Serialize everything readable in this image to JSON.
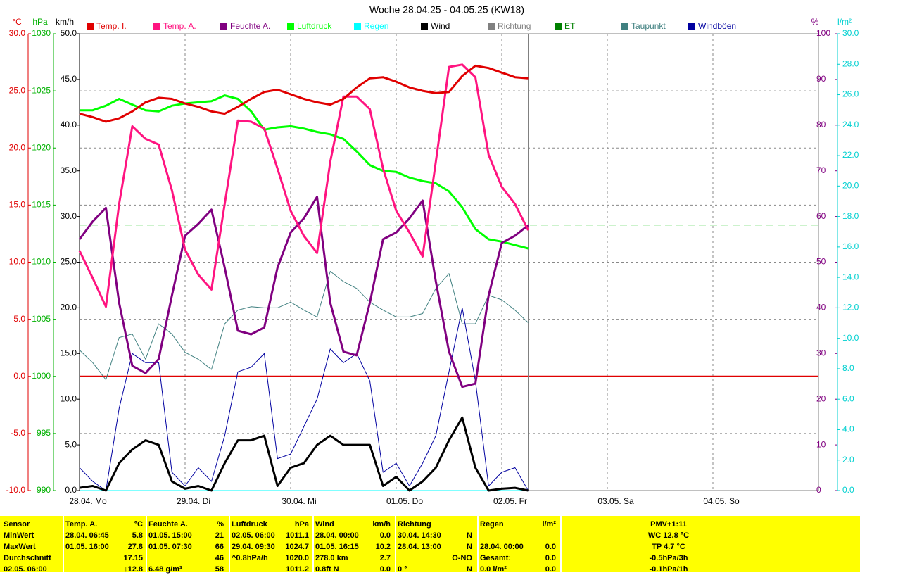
{
  "chart_data": {
    "type": "line",
    "title": "Woche 28.04.25 - 04.05.25 (KW18)",
    "xlim": [
      0,
      7
    ],
    "xticks": [
      {
        "value": 0,
        "label": "28.04. Mo"
      },
      {
        "value": 1,
        "label": "29.04. Di"
      },
      {
        "value": 2,
        "label": "30.04. Mi"
      },
      {
        "value": 3,
        "label": "01.05. Do"
      },
      {
        "value": 4,
        "label": "02.05. Fr"
      },
      {
        "value": 5,
        "label": "03.05. Sa"
      },
      {
        "value": 6,
        "label": "04.05. So"
      }
    ],
    "grid": true,
    "axes": {
      "temp": {
        "unit": "°C",
        "color": "#e00000",
        "lim": [
          -10,
          30
        ],
        "ticks": [
          {
            "value": 30,
            "label": "30.0"
          },
          {
            "value": 25,
            "label": "25.0"
          },
          {
            "value": 20,
            "label": "20.0"
          },
          {
            "value": 15,
            "label": "15.0"
          },
          {
            "value": 10,
            "label": "10.0"
          },
          {
            "value": 5,
            "label": "5.0"
          },
          {
            "value": 0,
            "label": "0.0"
          },
          {
            "value": -5,
            "label": "-5.0"
          },
          {
            "value": -10,
            "label": "-10.0"
          }
        ]
      },
      "hpa": {
        "unit": "hPa",
        "color": "#00b000",
        "lim": [
          990,
          1030
        ],
        "ticks": [
          1030,
          1025,
          1020,
          1015,
          1010,
          1005,
          1000,
          995,
          990
        ]
      },
      "kmh": {
        "unit": "km/h",
        "color": "#000000",
        "lim": [
          0,
          50
        ],
        "ticks": [
          {
            "value": 50,
            "label": "50.0"
          },
          {
            "value": 45,
            "label": "45.0"
          },
          {
            "value": 40,
            "label": "40.0"
          },
          {
            "value": 35,
            "label": "35.0"
          },
          {
            "value": 30,
            "label": "30.0"
          },
          {
            "value": 25,
            "label": "25.0"
          },
          {
            "value": 20,
            "label": "20.0"
          },
          {
            "value": 15,
            "label": "15.0"
          },
          {
            "value": 10,
            "label": "10.0"
          },
          {
            "value": 5,
            "label": "5.0"
          },
          {
            "value": 0,
            "label": "0.0"
          }
        ]
      },
      "pct": {
        "unit": "%",
        "color": "#800080",
        "lim": [
          0,
          100
        ],
        "ticks": [
          100,
          90,
          80,
          70,
          60,
          50,
          40,
          30,
          20,
          10,
          0
        ]
      },
      "rain": {
        "unit": "l/m²",
        "color": "#00d0d0",
        "lim": [
          0,
          30
        ],
        "ticks": [
          {
            "value": 30,
            "label": "30.0"
          },
          {
            "value": 28,
            "label": "28.0"
          },
          {
            "value": 26,
            "label": "26.0"
          },
          {
            "value": 24,
            "label": "24.0"
          },
          {
            "value": 22,
            "label": "22.0"
          },
          {
            "value": 20,
            "label": "20.0"
          },
          {
            "value": 18,
            "label": "18.0"
          },
          {
            "value": 16,
            "label": "16.0"
          },
          {
            "value": 14,
            "label": "14.0"
          },
          {
            "value": 12,
            "label": "12.0"
          },
          {
            "value": 10,
            "label": "10.0"
          },
          {
            "value": 8,
            "label": "8.0"
          },
          {
            "value": 6,
            "label": "6.0"
          },
          {
            "value": 4,
            "label": "4.0"
          },
          {
            "value": 2,
            "label": "2.0"
          },
          {
            "value": 0,
            "label": "0.0"
          }
        ]
      }
    },
    "reference_lines": [
      {
        "axis": "temp",
        "value": 0,
        "color": "#e00000"
      },
      {
        "axis": "hpa",
        "value": 1013.25,
        "color": "#33cc33",
        "dash": true
      }
    ],
    "x": [
      0,
      0.125,
      0.25,
      0.375,
      0.5,
      0.625,
      0.75,
      0.875,
      1,
      1.125,
      1.25,
      1.375,
      1.5,
      1.625,
      1.75,
      1.875,
      2,
      2.125,
      2.25,
      2.375,
      2.5,
      2.625,
      2.75,
      2.875,
      3,
      3.125,
      3.25,
      3.375,
      3.5,
      3.625,
      3.75,
      3.875,
      4,
      4.125,
      4.25
    ],
    "series": [
      {
        "name": "Temp. I.",
        "color": "#e00000",
        "axis": "temp",
        "width": 3,
        "values": [
          23.0,
          22.7,
          22.3,
          22.6,
          23.2,
          24.0,
          24.4,
          24.3,
          23.9,
          23.6,
          23.2,
          23.0,
          23.6,
          24.3,
          24.9,
          25.1,
          24.7,
          24.3,
          24.0,
          23.8,
          24.3,
          25.3,
          26.1,
          26.2,
          25.8,
          25.3,
          25.0,
          24.8,
          24.9,
          26.3,
          27.2,
          27.0,
          26.6,
          26.2,
          26.1
        ]
      },
      {
        "name": "Temp. A.",
        "color": "#ff1480",
        "axis": "temp",
        "width": 3,
        "values": [
          11.0,
          8.6,
          6.1,
          15.1,
          21.9,
          20.8,
          20.3,
          16.3,
          11.1,
          8.9,
          7.6,
          15.1,
          22.4,
          22.3,
          21.7,
          18.2,
          14.5,
          12.3,
          10.8,
          18.8,
          24.5,
          24.5,
          23.4,
          18.2,
          14.5,
          12.6,
          10.5,
          18.8,
          27.1,
          27.3,
          26.2,
          19.4,
          16.6,
          15.1,
          12.8
        ]
      },
      {
        "name": "Feuchte A.",
        "color": "#800080",
        "axis": "pct",
        "width": 3,
        "values": [
          55.0,
          58.9,
          61.9,
          41.1,
          27.3,
          25.7,
          28.8,
          42.7,
          55.8,
          58.4,
          61.5,
          48.8,
          35.0,
          34.2,
          35.7,
          48.8,
          56.5,
          59.6,
          64.3,
          41.1,
          30.4,
          29.6,
          41.1,
          55.0,
          56.5,
          59.6,
          63.5,
          45.8,
          30.4,
          22.7,
          23.4,
          42.7,
          54.2,
          55.8,
          58.1
        ]
      },
      {
        "name": "Luftdruck",
        "color": "#00ff00",
        "axis": "hpa",
        "width": 3,
        "values": [
          1023.3,
          1023.3,
          1023.7,
          1024.3,
          1023.8,
          1023.3,
          1023.2,
          1023.7,
          1023.9,
          1024.0,
          1024.1,
          1024.6,
          1024.3,
          1023.2,
          1021.6,
          1021.8,
          1021.9,
          1021.7,
          1021.4,
          1021.2,
          1020.8,
          1019.7,
          1018.5,
          1018.0,
          1017.9,
          1017.4,
          1017.1,
          1016.9,
          1016.2,
          1014.8,
          1012.9,
          1012.0,
          1011.8,
          1011.5,
          1011.2
        ]
      },
      {
        "name": "Regen",
        "color": "#00ffff",
        "axis": "rain",
        "width": 1,
        "values": [
          0,
          0,
          0,
          0,
          0,
          0,
          0,
          0,
          0,
          0,
          0,
          0,
          0,
          0,
          0,
          0,
          0,
          0,
          0,
          0,
          0,
          0,
          0,
          0,
          0,
          0,
          0,
          0,
          0,
          0,
          0,
          0,
          0,
          0,
          0
        ]
      },
      {
        "name": "Wind",
        "color": "#000000",
        "axis": "kmh",
        "width": 3,
        "values": [
          0.3,
          0.5,
          0.0,
          3.0,
          4.5,
          5.5,
          5.0,
          1.0,
          0.2,
          0.5,
          0.0,
          3.0,
          5.5,
          5.5,
          6.0,
          0.5,
          2.5,
          3.0,
          5.0,
          6.0,
          5.0,
          5.0,
          5.0,
          0.5,
          1.5,
          0.0,
          1.0,
          2.5,
          5.5,
          8.0,
          2.5,
          0.0,
          0.2,
          0.3,
          0.0
        ]
      },
      {
        "name": "Richtung",
        "color": "#808080"
      },
      {
        "name": "ET",
        "color": "#008000"
      },
      {
        "name": "Taupunkt",
        "color": "#408080",
        "axis": "temp",
        "width": 1,
        "values": [
          2.3,
          1.2,
          -0.3,
          3.4,
          3.7,
          1.5,
          4.6,
          3.7,
          2.1,
          1.5,
          0.6,
          4.6,
          5.8,
          6.1,
          6.0,
          6.0,
          6.5,
          5.8,
          5.2,
          9.2,
          8.3,
          7.7,
          6.5,
          5.8,
          5.2,
          5.2,
          5.5,
          7.7,
          9.0,
          4.6,
          4.6,
          7.1,
          6.7,
          5.8,
          4.7
        ]
      },
      {
        "name": "Windböen",
        "color": "#0000a0",
        "axis": "kmh",
        "width": 1,
        "values": [
          2.5,
          1.0,
          0.0,
          9.0,
          15.0,
          14.0,
          14.0,
          2.0,
          0.5,
          2.5,
          1.0,
          6.0,
          13.0,
          13.5,
          15.0,
          3.5,
          4.0,
          7.0,
          10.0,
          15.5,
          14.0,
          15.0,
          12.0,
          2.0,
          3.0,
          0.5,
          3.0,
          6.0,
          13.0,
          20.0,
          12.0,
          0.5,
          2.0,
          2.5,
          0.0
        ]
      }
    ]
  },
  "table": {
    "blocks": [
      {
        "head": "Sensor",
        "rows": [
          {
            "l": "MinWert"
          },
          {
            "l": "MaxWert"
          },
          {
            "l": "Durchschnitt"
          },
          {
            "l": "02.05. 06:00"
          }
        ]
      },
      {
        "head": "Temp. A.",
        "unit": "°C",
        "rows": [
          {
            "l": "28.04.  06:45",
            "r": "5.8"
          },
          {
            "l": "01.05.  16:00",
            "r": "27.8"
          },
          {
            "r": "17.15"
          },
          {
            "r": "↓12.8"
          }
        ]
      },
      {
        "head": "Feuchte A.",
        "unit": "%",
        "rows": [
          {
            "l": "01.05.  15:00",
            "r": "21"
          },
          {
            "l": "01.05.  07:30",
            "r": "66"
          },
          {
            "r": "46"
          },
          {
            "l": "6.48 g/m³",
            "r": "58"
          }
        ]
      },
      {
        "head": "Luftdruck",
        "unit": "hPa",
        "rows": [
          {
            "l": "02.05.  06:00",
            "r": "1011.1"
          },
          {
            "l": "29.04.  09:30",
            "r": "1024.7"
          },
          {
            "l": "^0.8hPa/h",
            "r": "1020.0"
          },
          {
            "r": "1011.2"
          }
        ]
      },
      {
        "head": "Wind",
        "unit": "km/h",
        "rows": [
          {
            "l": "28.04.  00:00",
            "r": "0.0"
          },
          {
            "l": "01.05.  16:15",
            "r": "10.2"
          },
          {
            "l": "278.0 km",
            "r": "2.7"
          },
          {
            "l": "0.8ft N",
            "r": "0.0"
          }
        ]
      },
      {
        "head": "Richtung",
        "rows": [
          {
            "l": "30.04.  14:30",
            "r": "N"
          },
          {
            "l": "28.04.  13:00",
            "r": "N"
          },
          {
            "r": "O-NO"
          },
          {
            "l": "0 °",
            "r": "N"
          }
        ]
      },
      {
        "head": "Regen",
        "unit": "l/m²",
        "rows": [
          {},
          {
            "l": "28.04.  00:00",
            "r": "0.0"
          },
          {
            "l": "Gesamt:",
            "r": "0.0"
          },
          {
            "l": "0.0 l/m²",
            "r": "0.0"
          }
        ]
      },
      {
        "head": "PMV+1:11",
        "rows": [
          {
            "c": "WC 12.8 °C"
          },
          {
            "c": "TP 4.7 °C"
          },
          {
            "c": "-0.5hPa/3h"
          },
          {
            "c": "-0.1hPa/1h"
          }
        ]
      }
    ]
  }
}
